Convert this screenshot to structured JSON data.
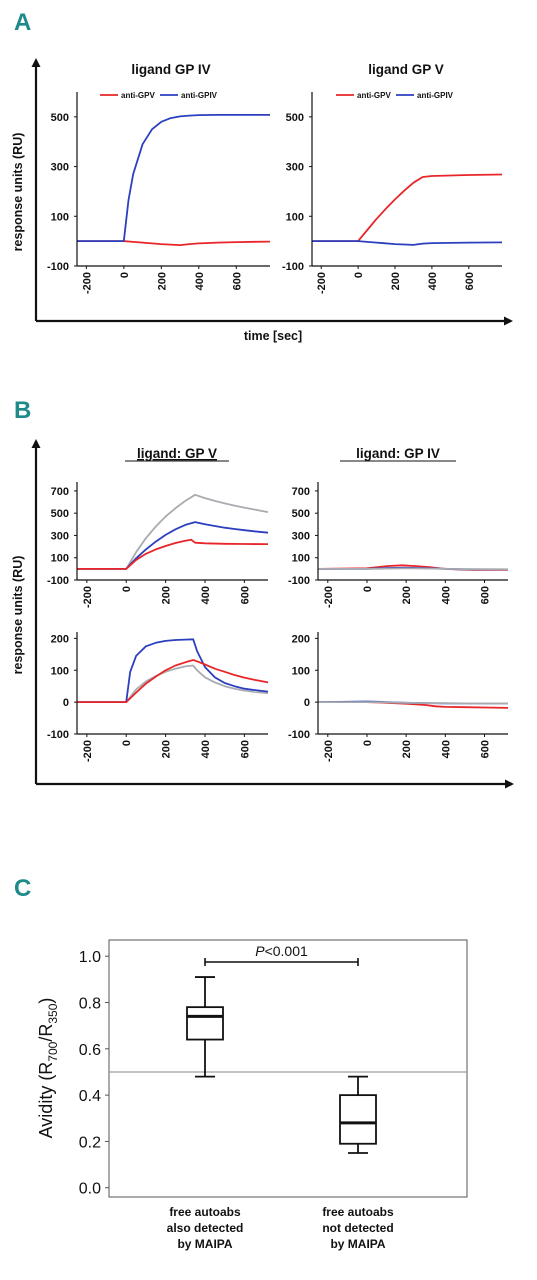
{
  "panels": {
    "a": "A",
    "b": "B",
    "c": "C"
  },
  "chart_data": [
    {
      "panel": "A",
      "type": "line",
      "axis_labels": {
        "x": "time [sec]",
        "y": "response units (RU)"
      },
      "x_ticks": [
        "-200",
        "0",
        "200",
        "400",
        "600"
      ],
      "y_ticks": [
        "500",
        "300",
        "100",
        "-100"
      ],
      "xlim": [
        -250,
        780
      ],
      "ylim": [
        -100,
        600
      ],
      "subplots": [
        {
          "title": "ligand GP IV",
          "legend": [
            "anti-GPV",
            "anti-GPIV"
          ],
          "series": [
            {
              "name": "anti-GPV",
              "color": "#e8262a",
              "x": [
                -250,
                0,
                100,
                200,
                300,
                350,
                400,
                500,
                600,
                780
              ],
              "y": [
                0,
                0,
                -6,
                -12,
                -16,
                -12,
                -9,
                -6,
                -4,
                -2
              ]
            },
            {
              "name": "anti-GPIV",
              "color": "#2b3fbf",
              "x": [
                -250,
                0,
                25,
                50,
                100,
                150,
                200,
                250,
                300,
                350,
                400,
                500,
                600,
                780
              ],
              "y": [
                0,
                0,
                165,
                270,
                390,
                450,
                480,
                495,
                502,
                505,
                507,
                508,
                508,
                508
              ]
            }
          ]
        },
        {
          "title": "ligand GP V",
          "legend": [
            "anti-GPV",
            "anti-GPIV"
          ],
          "series": [
            {
              "name": "anti-GPV",
              "color": "#e8262a",
              "x": [
                -250,
                0,
                50,
                100,
                150,
                200,
                250,
                300,
                350,
                400,
                500,
                600,
                780
              ],
              "y": [
                0,
                0,
                45,
                90,
                130,
                168,
                203,
                235,
                258,
                262,
                264,
                266,
                268
              ]
            },
            {
              "name": "anti-GPIV",
              "color": "#2b3fbf",
              "x": [
                -250,
                0,
                100,
                200,
                300,
                350,
                400,
                500,
                600,
                780
              ],
              "y": [
                0,
                0,
                -6,
                -12,
                -15,
                -10,
                -8,
                -7,
                -6,
                -5
              ]
            }
          ]
        }
      ]
    },
    {
      "panel": "B",
      "type": "line",
      "axis_labels": {
        "x": "",
        "y": "response units (RU)"
      },
      "x_ticks": [
        "-200",
        "0",
        "200",
        "400",
        "600"
      ],
      "xlim": [
        -250,
        720
      ],
      "subplots": [
        {
          "title": "ligand: GP V",
          "y_ticks": [
            "700",
            "500",
            "300",
            "100",
            "-100"
          ],
          "ylim": [
            -100,
            780
          ],
          "series": [
            {
              "color": "#a8acb0",
              "x": [
                -250,
                0,
                50,
                100,
                150,
                200,
                250,
                300,
                350,
                400,
                450,
                500,
                550,
                600,
                650,
                720
              ],
              "y": [
                0,
                0,
                150,
                275,
                380,
                470,
                545,
                610,
                665,
                635,
                610,
                588,
                568,
                550,
                533,
                510
              ]
            },
            {
              "color": "#2b3fbf",
              "x": [
                -250,
                0,
                50,
                100,
                150,
                200,
                250,
                300,
                350,
                400,
                450,
                500,
                550,
                600,
                650,
                720
              ],
              "y": [
                0,
                0,
                95,
                175,
                245,
                305,
                355,
                395,
                420,
                400,
                385,
                370,
                358,
                347,
                337,
                325
              ]
            },
            {
              "color": "#e8262a",
              "x": [
                -250,
                0,
                50,
                100,
                150,
                200,
                250,
                300,
                330,
                350,
                400,
                500,
                600,
                720
              ],
              "y": [
                0,
                0,
                80,
                135,
                175,
                205,
                232,
                252,
                262,
                235,
                230,
                225,
                223,
                222
              ]
            }
          ]
        },
        {
          "title": "ligand: GP IV",
          "y_ticks": [
            "700",
            "500",
            "300",
            "100",
            "-100"
          ],
          "ylim": [
            -100,
            780
          ],
          "series": [
            {
              "color": "#e8262a",
              "x": [
                -250,
                0,
                100,
                180,
                250,
                320,
                380,
                450,
                550,
                720
              ],
              "y": [
                0,
                5,
                25,
                32,
                25,
                15,
                3,
                -5,
                -8,
                -8
              ]
            },
            {
              "color": "#2b3fbf",
              "x": [
                -250,
                0,
                100,
                200,
                300,
                400,
                500,
                600,
                720
              ],
              "y": [
                0,
                0,
                8,
                10,
                6,
                0,
                -4,
                -5,
                -5
              ]
            },
            {
              "color": "#a8acb0",
              "x": [
                -250,
                0,
                100,
                200,
                300,
                400,
                500,
                600,
                720
              ],
              "y": [
                0,
                0,
                2,
                4,
                3,
                0,
                -2,
                -3,
                -4
              ]
            }
          ]
        },
        {
          "title": "",
          "y_ticks": [
            "200",
            "100",
            "0",
            "-100"
          ],
          "ylim": [
            -100,
            220
          ],
          "series": [
            {
              "color": "#a8acb0",
              "x": [
                -250,
                0,
                50,
                100,
                150,
                200,
                250,
                300,
                340,
                360,
                400,
                450,
                500,
                550,
                600,
                650,
                720
              ],
              "y": [
                0,
                0,
                40,
                65,
                82,
                95,
                105,
                112,
                115,
                100,
                78,
                62,
                50,
                42,
                36,
                32,
                28
              ]
            },
            {
              "color": "#2b3fbf",
              "x": [
                -250,
                0,
                20,
                50,
                100,
                150,
                200,
                250,
                300,
                340,
                360,
                400,
                450,
                500,
                550,
                600,
                650,
                720
              ],
              "y": [
                0,
                0,
                95,
                145,
                175,
                186,
                192,
                195,
                196,
                197,
                160,
                110,
                78,
                60,
                50,
                42,
                38,
                33
              ]
            },
            {
              "color": "#e8262a",
              "x": [
                -250,
                0,
                50,
                100,
                150,
                200,
                250,
                300,
                340,
                360,
                400,
                450,
                500,
                550,
                600,
                650,
                720
              ],
              "y": [
                0,
                0,
                30,
                58,
                80,
                100,
                115,
                125,
                132,
                128,
                118,
                105,
                95,
                85,
                77,
                70,
                62
              ]
            }
          ]
        },
        {
          "title": "",
          "y_ticks": [
            "200",
            "100",
            "0",
            "-100"
          ],
          "ylim": [
            -100,
            220
          ],
          "series": [
            {
              "color": "#e8262a",
              "x": [
                -250,
                0,
                100,
                200,
                300,
                350,
                400,
                500,
                600,
                720
              ],
              "y": [
                0,
                0,
                -2,
                -5,
                -9,
                -13,
                -15,
                -16,
                -17,
                -18
              ]
            },
            {
              "color": "#2b3fbf",
              "x": [
                -250,
                0,
                100,
                200,
                300,
                400,
                500,
                600,
                720
              ],
              "y": [
                0,
                2,
                0,
                -2,
                -3,
                -4,
                -4,
                -4,
                -4
              ]
            },
            {
              "color": "#a8acb0",
              "x": [
                -250,
                0,
                100,
                200,
                300,
                400,
                500,
                600,
                720
              ],
              "y": [
                0,
                0,
                -1,
                -2,
                -3,
                -3,
                -4,
                -4,
                -4
              ]
            }
          ]
        }
      ]
    },
    {
      "panel": "C",
      "type": "box",
      "ylabel": "Avidity (R700/R350)",
      "ylim": [
        -0.04,
        1.07
      ],
      "y_ticks": [
        0.0,
        0.2,
        0.4,
        0.6,
        0.8,
        1.0
      ],
      "y_tick_labels": [
        "0.0",
        "0.2",
        "0.4",
        "0.6",
        "0.8",
        "1.0"
      ],
      "reference_line": 0.5,
      "categories": [
        [
          "free autoabs",
          "also detected",
          "by MAIPA"
        ],
        [
          "free autoabs",
          "not detected",
          "by MAIPA"
        ]
      ],
      "boxes": [
        {
          "min": 0.48,
          "q1": 0.64,
          "median": 0.74,
          "q3": 0.78,
          "max": 0.91
        },
        {
          "min": 0.15,
          "q1": 0.19,
          "median": 0.28,
          "q3": 0.4,
          "max": 0.48
        }
      ],
      "annotation": {
        "italic": "P",
        "rest": "<0.001",
        "y": 0.975
      }
    }
  ]
}
